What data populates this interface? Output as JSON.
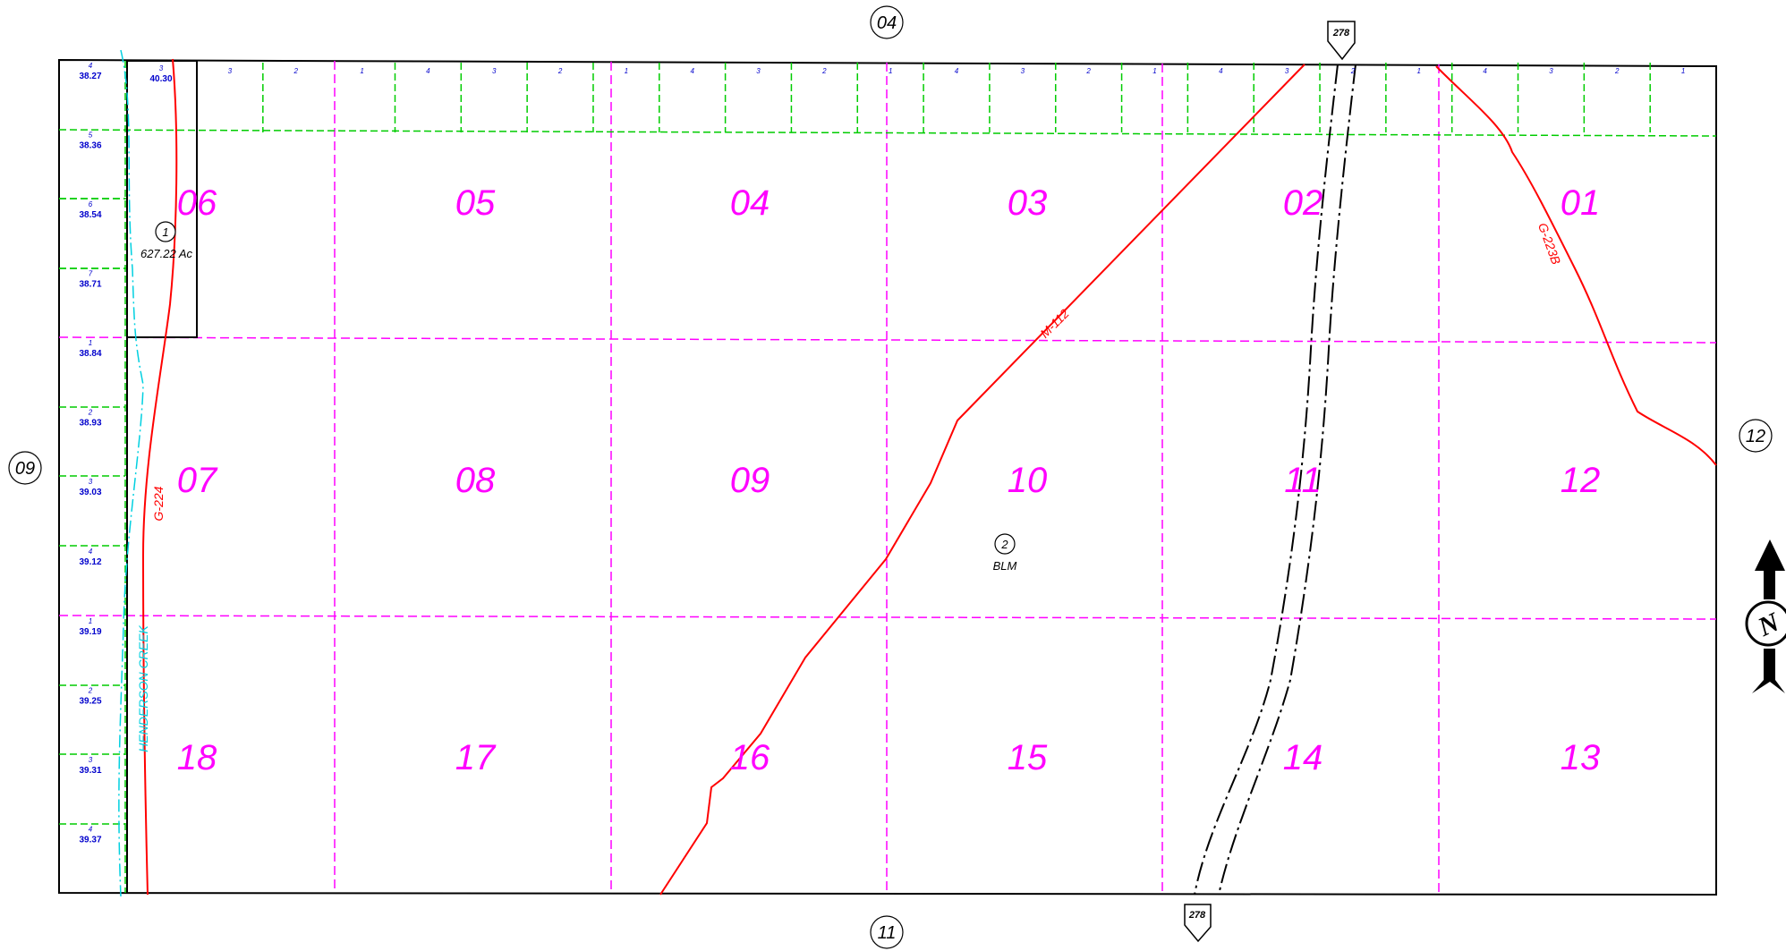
{
  "adjacent": {
    "north": "04",
    "south": "11",
    "west": "09",
    "east": "12"
  },
  "sections": [
    {
      "label": "06",
      "col": 0,
      "row": 0
    },
    {
      "label": "05",
      "col": 1,
      "row": 0
    },
    {
      "label": "04",
      "col": 2,
      "row": 0
    },
    {
      "label": "03",
      "col": 3,
      "row": 0
    },
    {
      "label": "02",
      "col": 4,
      "row": 0
    },
    {
      "label": "01",
      "col": 5,
      "row": 0
    },
    {
      "label": "07",
      "col": 0,
      "row": 1
    },
    {
      "label": "08",
      "col": 1,
      "row": 1
    },
    {
      "label": "09",
      "col": 2,
      "row": 1
    },
    {
      "label": "10",
      "col": 3,
      "row": 1
    },
    {
      "label": "11",
      "col": 4,
      "row": 1
    },
    {
      "label": "12",
      "col": 5,
      "row": 1
    },
    {
      "label": "18",
      "col": 0,
      "row": 2
    },
    {
      "label": "17",
      "col": 1,
      "row": 2
    },
    {
      "label": "16",
      "col": 2,
      "row": 2
    },
    {
      "label": "15",
      "col": 3,
      "row": 2
    },
    {
      "label": "14",
      "col": 4,
      "row": 2
    },
    {
      "label": "13",
      "col": 5,
      "row": 2
    }
  ],
  "top_lots": [
    "3",
    "2",
    "1",
    "4",
    "3",
    "2",
    "1",
    "4",
    "3",
    "2",
    "1",
    "4",
    "3",
    "2",
    "1",
    "4",
    "3",
    "2",
    "1",
    "4",
    "3",
    "2",
    "1"
  ],
  "west_lots": [
    {
      "num": "4",
      "ac": "38.27"
    },
    {
      "num": "5",
      "ac": "38.36"
    },
    {
      "num": "6",
      "ac": "38.54"
    },
    {
      "num": "7",
      "ac": "38.71"
    },
    {
      "num": "1",
      "ac": "38.84"
    },
    {
      "num": "2",
      "ac": "38.93"
    },
    {
      "num": "3",
      "ac": "39.03"
    },
    {
      "num": "4",
      "ac": "39.12"
    },
    {
      "num": "1",
      "ac": "39.19"
    },
    {
      "num": "2",
      "ac": "39.25"
    },
    {
      "num": "3",
      "ac": "39.31"
    },
    {
      "num": "4",
      "ac": "39.37"
    }
  ],
  "corner_lot": {
    "num": "3",
    "ac": "40.30"
  },
  "parcels": [
    {
      "num": "1",
      "label": "627.22 Ac"
    },
    {
      "num": "2",
      "label": "BLM"
    }
  ],
  "lines": {
    "m112": "M-112",
    "g224": "G-224",
    "g223b": "G-223B"
  },
  "creek": "HENDERSON CREEK",
  "highway": "278",
  "north_arrow": "N",
  "colors": {
    "section_lines": "#ff00ff",
    "lot_lines": "#00cc00",
    "utility_lines": "#ff0000",
    "creek": "#00d0e0",
    "lot_text": "#0000cc"
  }
}
